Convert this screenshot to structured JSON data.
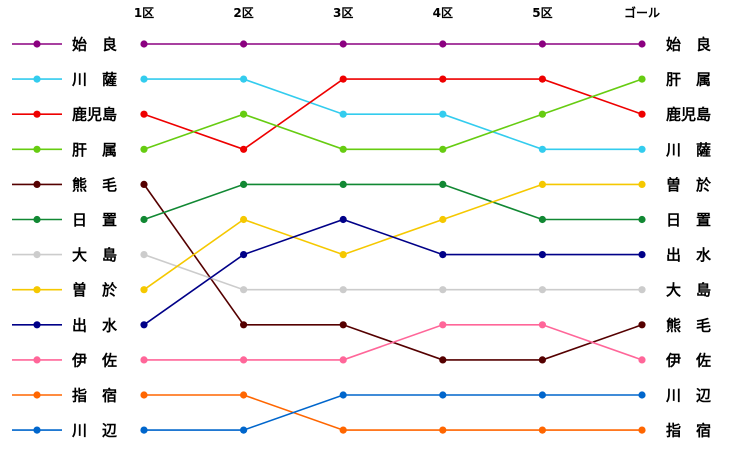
{
  "chart_data": {
    "type": "line",
    "x": [
      "1区",
      "2区",
      "3区",
      "4区",
      "5区",
      "ゴール"
    ],
    "y_axis": "rank",
    "ylim": [
      1,
      12
    ],
    "grid": false,
    "legend_placement": "left",
    "right_labels": [
      "始　良",
      "肝　属",
      "鹿児島",
      "川　薩",
      "曽　於",
      "日　置",
      "出　水",
      "大　島",
      "熊　毛",
      "伊　佐",
      "川　辺",
      "指　宿"
    ],
    "series": [
      {
        "name": "始　良",
        "color": "#8b0080",
        "ranks": [
          1,
          1,
          1,
          1,
          1,
          1
        ]
      },
      {
        "name": "川　薩",
        "color": "#33ccee",
        "ranks": [
          2,
          2,
          3,
          3,
          4,
          4
        ]
      },
      {
        "name": "鹿児島",
        "color": "#ee0000",
        "ranks": [
          3,
          4,
          2,
          2,
          2,
          3
        ]
      },
      {
        "name": "肝　属",
        "color": "#66cc11",
        "ranks": [
          4,
          3,
          4,
          4,
          3,
          2
        ]
      },
      {
        "name": "熊　毛",
        "color": "#550000",
        "ranks": [
          5,
          9,
          9,
          10,
          10,
          9
        ]
      },
      {
        "name": "日　置",
        "color": "#118833",
        "ranks": [
          6,
          5,
          5,
          5,
          6,
          6
        ]
      },
      {
        "name": "大　島",
        "color": "#cccccc",
        "ranks": [
          7,
          8,
          8,
          8,
          8,
          8
        ]
      },
      {
        "name": "曽　於",
        "color": "#f5c800",
        "ranks": [
          8,
          6,
          7,
          6,
          5,
          5
        ]
      },
      {
        "name": "出　水",
        "color": "#000088",
        "ranks": [
          9,
          7,
          6,
          7,
          7,
          7
        ]
      },
      {
        "name": "伊　佐",
        "color": "#ff6699",
        "ranks": [
          10,
          10,
          10,
          9,
          9,
          10
        ]
      },
      {
        "name": "指　宿",
        "color": "#ff6600",
        "ranks": [
          11,
          11,
          12,
          12,
          12,
          12
        ]
      },
      {
        "name": "川　辺",
        "color": "#0066cc",
        "ranks": [
          12,
          12,
          11,
          11,
          11,
          11
        ]
      }
    ]
  }
}
